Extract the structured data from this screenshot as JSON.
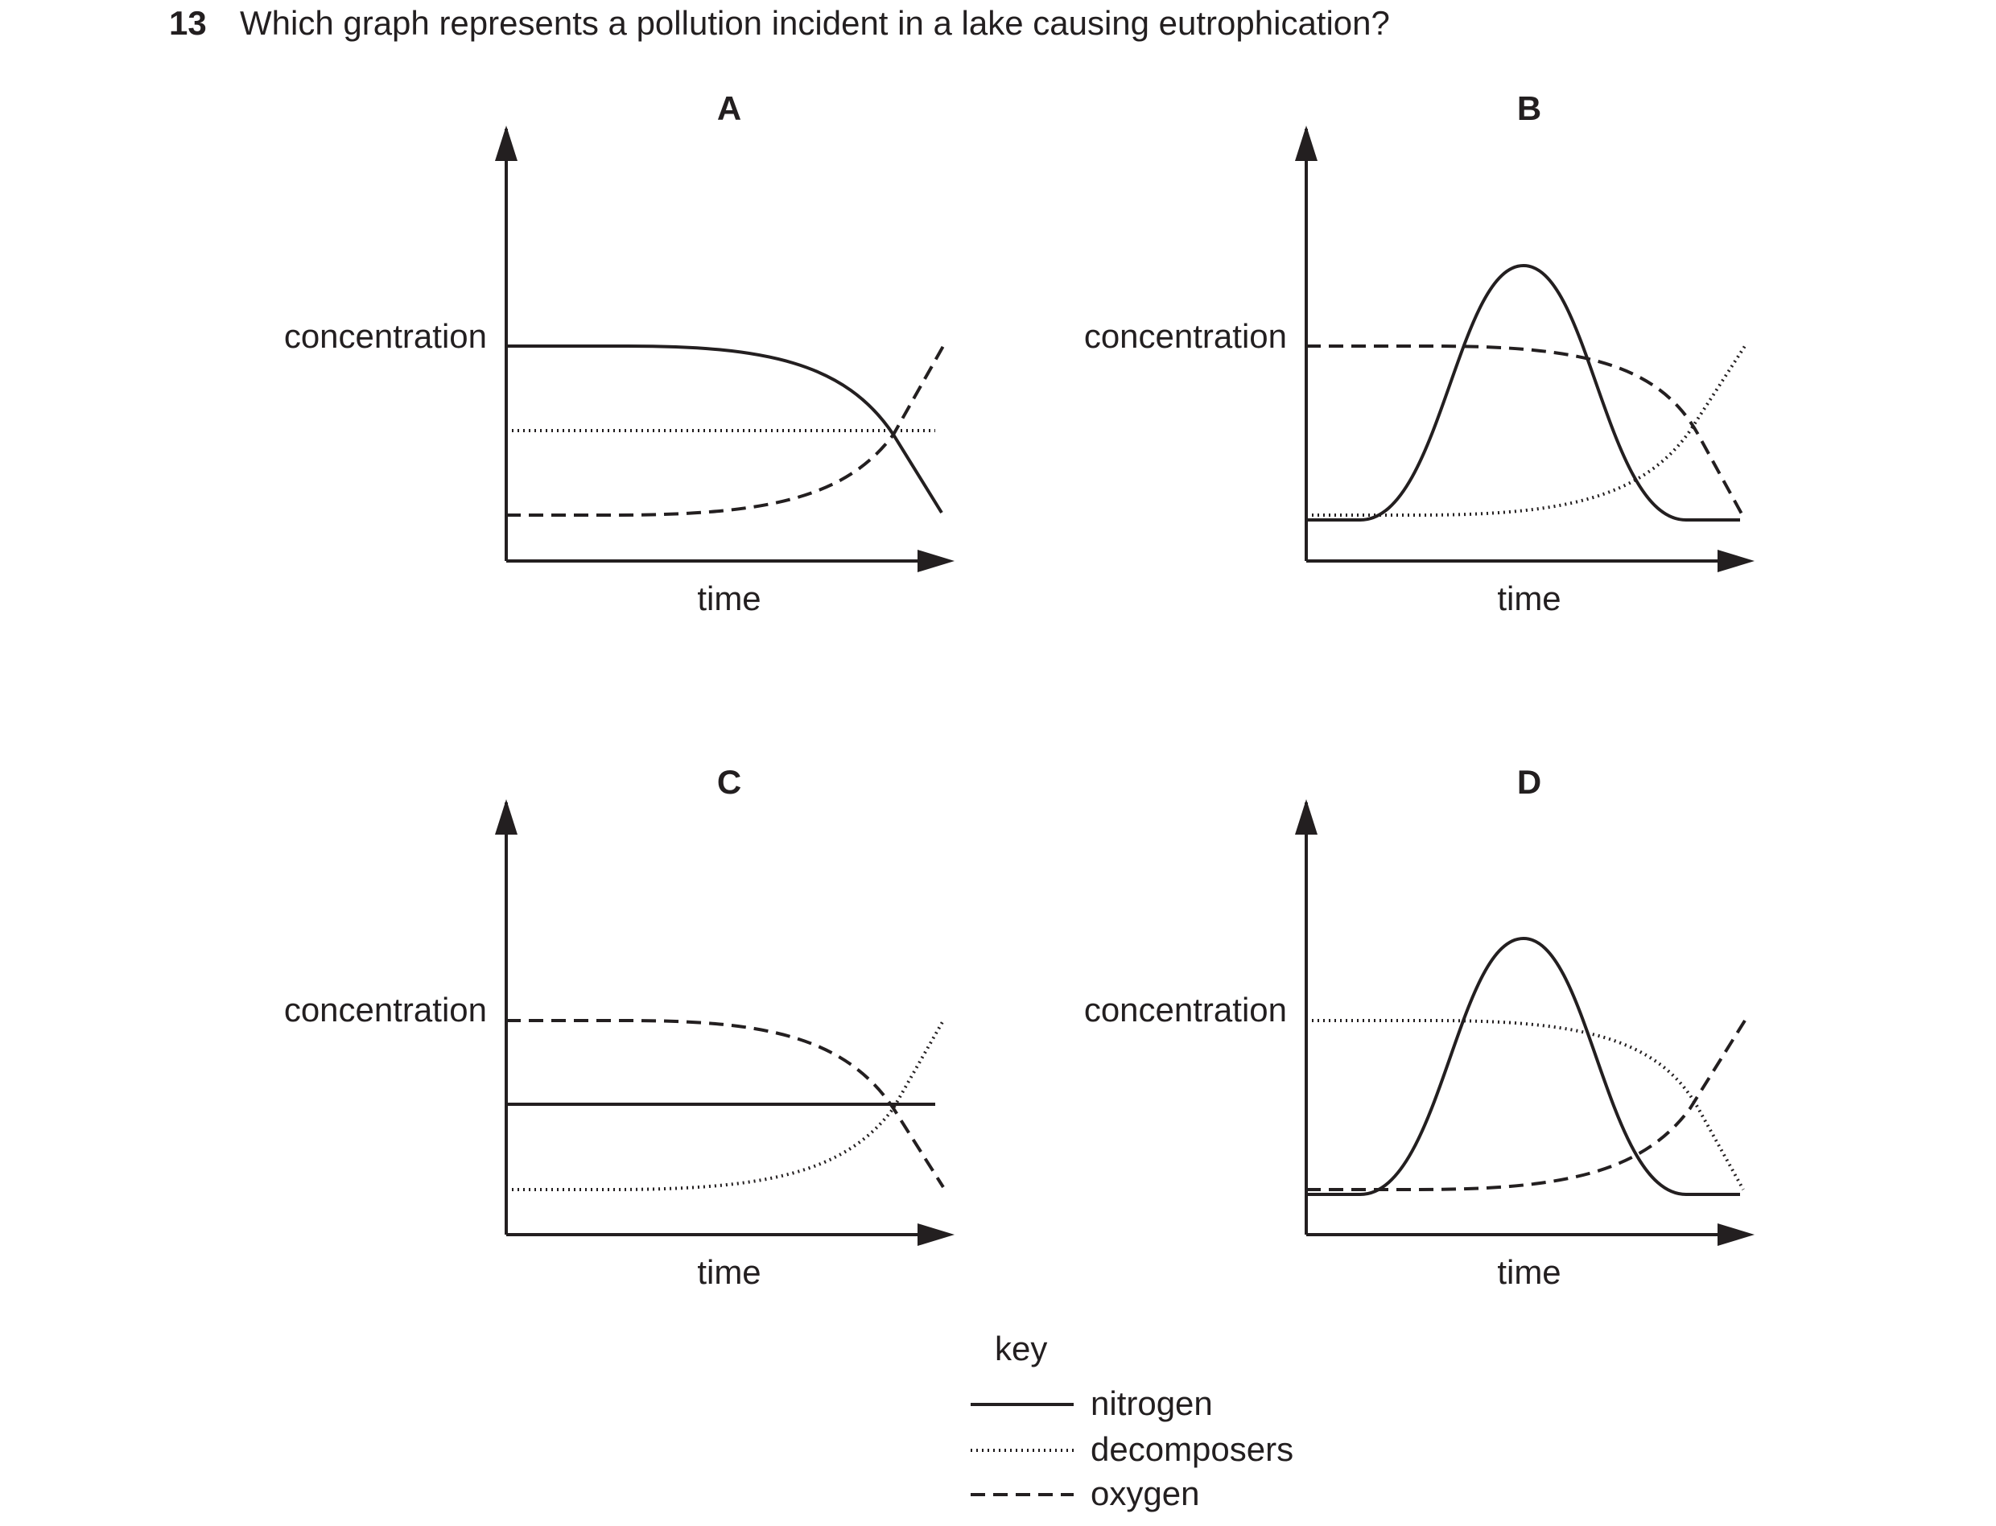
{
  "question": {
    "number": "13",
    "text": "Which graph represents a pollution incident in a lake causing eutrophication?"
  },
  "graphs": [
    {
      "label": "A",
      "ylabel": "concentration",
      "xlabel": "time"
    },
    {
      "label": "B",
      "ylabel": "concentration",
      "xlabel": "time"
    },
    {
      "label": "C",
      "ylabel": "concentration",
      "xlabel": "time"
    },
    {
      "label": "D",
      "ylabel": "concentration",
      "xlabel": "time"
    }
  ],
  "key": {
    "title": "key",
    "items": [
      {
        "label": "nitrogen",
        "style": "solid"
      },
      {
        "label": "decomposers",
        "style": "dotted"
      },
      {
        "label": "oxygen",
        "style": "dashed"
      }
    ]
  },
  "colors": {
    "ink": "#231f20",
    "background": "#ffffff"
  }
}
